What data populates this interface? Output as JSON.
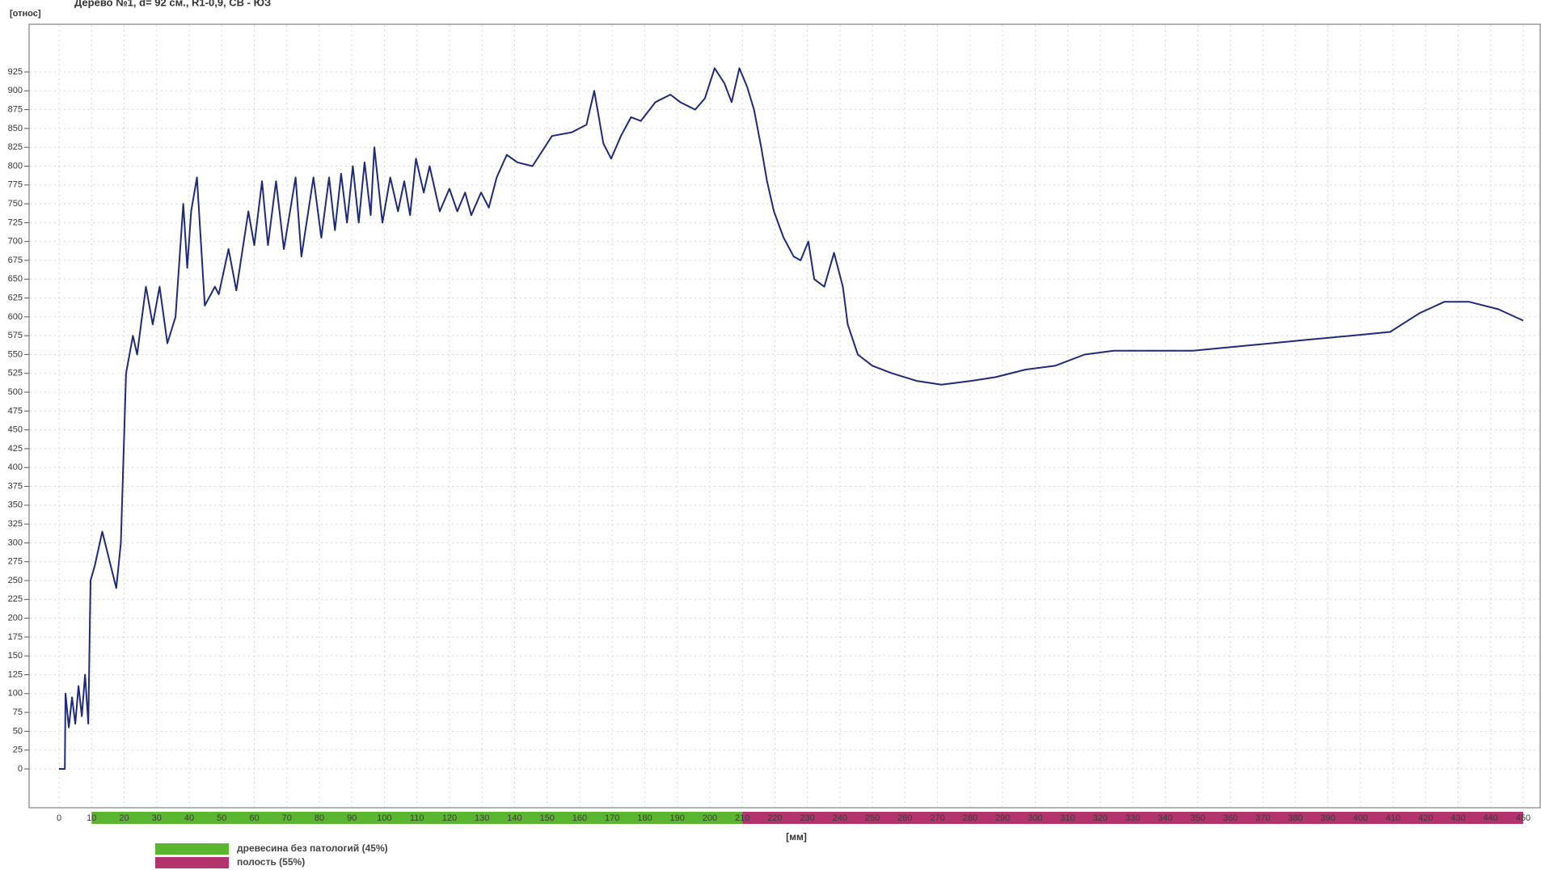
{
  "chart_data": {
    "type": "line",
    "title": "Дерево №1, d= 92 см., R1-0,9, СВ - ЮЗ",
    "y_label": "[относ]",
    "x_label": "[мм]",
    "grid": true,
    "xlim": [
      0,
      450
    ],
    "xticks": [
      0,
      10,
      20,
      30,
      40,
      50,
      60,
      70,
      80,
      90,
      100,
      110,
      120,
      130,
      140,
      150,
      160,
      170,
      180,
      190,
      200,
      210,
      220,
      230,
      240,
      250,
      260,
      270,
      280,
      290,
      300,
      310,
      320,
      330,
      340,
      350,
      360,
      370,
      380,
      390,
      400,
      410,
      420,
      430,
      440,
      450
    ],
    "ylim": [
      0,
      925
    ],
    "yticks": [
      0,
      25,
      50,
      75,
      100,
      125,
      150,
      175,
      200,
      225,
      250,
      275,
      300,
      325,
      350,
      375,
      400,
      425,
      450,
      475,
      500,
      525,
      550,
      575,
      600,
      625,
      650,
      675,
      700,
      725,
      750,
      775,
      800,
      825,
      850,
      875,
      900,
      925
    ],
    "zones": [
      {
        "name": "древесина без патологий (45%)",
        "color": "#5cb531",
        "start": 10,
        "end": 210
      },
      {
        "name": "полость (55%)",
        "color": "#b3346c",
        "start": 210,
        "end": 450
      }
    ],
    "series": [
      {
        "color": "#1f2a7a",
        "x": [
          0,
          1.8,
          2,
          3,
          4,
          5,
          6,
          7,
          8,
          9,
          9.7,
          11,
          13.3,
          15,
          17.6,
          19,
          20.6,
          22.7,
          24,
          26.7,
          28.8,
          30.9,
          33.3,
          35.8,
          38.2,
          39.4,
          40.6,
          42.4,
          44.8,
          47.9,
          49.1,
          52.1,
          54.5,
          58.2,
          60,
          62.4,
          64.2,
          66.7,
          69.1,
          72.7,
          74.5,
          78.2,
          80.6,
          83,
          84.8,
          86.7,
          88.5,
          90.3,
          92.1,
          93.9,
          95.8,
          96.9,
          99.4,
          101.8,
          104.2,
          106.1,
          107.9,
          109.7,
          112.1,
          113.9,
          117,
          120,
          122.4,
          124.8,
          126.7,
          129.7,
          132.1,
          134.5,
          137.6,
          140.9,
          145.5,
          151.5,
          157.6,
          162.1,
          164.5,
          167.3,
          169.7,
          172.7,
          175.8,
          178.8,
          183.3,
          187.9,
          190.9,
          195.5,
          198.5,
          201.5,
          204.5,
          206.7,
          209.1,
          211.5,
          213.6,
          215.8,
          217.6,
          219.7,
          222.7,
          225.8,
          227.9,
          230.3,
          232.1,
          235.2,
          238.2,
          240.9,
          242.4,
          245.5,
          250,
          256.1,
          263.6,
          271.2,
          280.3,
          287.9,
          297,
          306.1,
          315.2,
          324.2,
          336.4,
          348.5,
          360.6,
          372.7,
          384.8,
          397,
          409.1,
          418.2,
          425.8,
          433.3,
          442.4,
          450
        ],
        "values": [
          0,
          0,
          100,
          55,
          95,
          60,
          110,
          70,
          125,
          60,
          250,
          270,
          315,
          285,
          240,
          300,
          525,
          575,
          550,
          640,
          590,
          640,
          565,
          600,
          750,
          665,
          740,
          785,
          615,
          640,
          630,
          690,
          635,
          740,
          695,
          780,
          695,
          780,
          690,
          785,
          680,
          785,
          705,
          785,
          715,
          790,
          725,
          800,
          725,
          805,
          735,
          825,
          725,
          785,
          740,
          780,
          735,
          810,
          765,
          800,
          740,
          770,
          740,
          765,
          735,
          765,
          745,
          785,
          815,
          805,
          800,
          840,
          845,
          855,
          900,
          830,
          810,
          840,
          865,
          860,
          885,
          895,
          885,
          875,
          890,
          930,
          910,
          885,
          930,
          905,
          875,
          825,
          780,
          740,
          705,
          680,
          675,
          700,
          650,
          640,
          685,
          640,
          590,
          550,
          535,
          525,
          515,
          510,
          515,
          520,
          530,
          535,
          550,
          555,
          555,
          555,
          560,
          565,
          570,
          575,
          580,
          605,
          620,
          620,
          610,
          595
        ]
      }
    ]
  }
}
